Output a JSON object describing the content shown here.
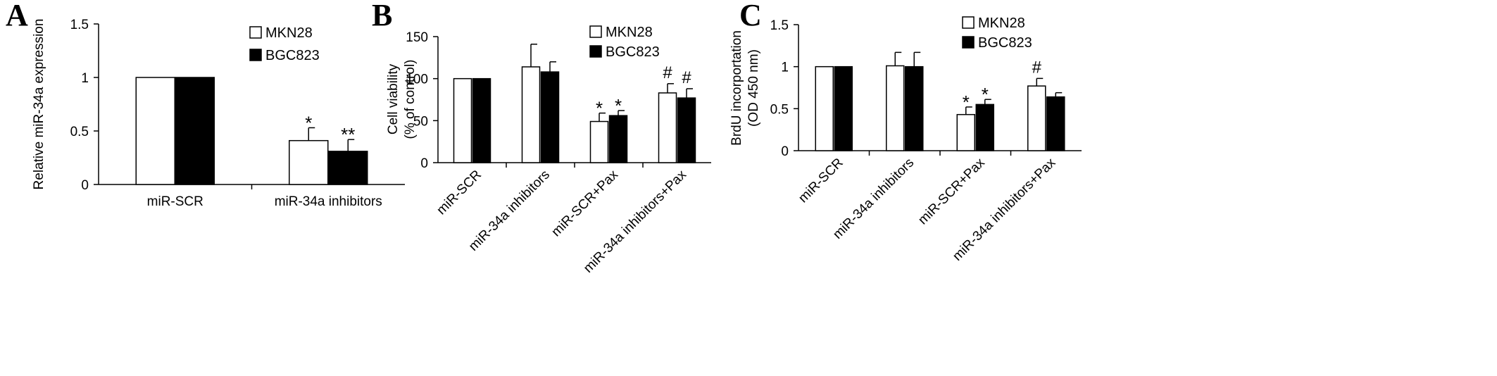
{
  "chart_data": [
    {
      "type": "bar",
      "panel": "A",
      "ylabel": "Relative miR-34a expression",
      "ylim": [
        0,
        1.5
      ],
      "yticks": [
        "0",
        "0.5",
        "1",
        "1.5"
      ],
      "categories": [
        "miR-SCR",
        "miR-34a inhibitors"
      ],
      "series": [
        {
          "name": "MKN28",
          "values": [
            1.0,
            0.41
          ],
          "errors": [
            0.0,
            0.12
          ],
          "marks": [
            "",
            "*"
          ]
        },
        {
          "name": "BGC823",
          "values": [
            1.0,
            0.31
          ],
          "errors": [
            0.0,
            0.11
          ],
          "marks": [
            "",
            "**"
          ]
        }
      ],
      "grid": false,
      "legend": "top-right"
    },
    {
      "type": "bar",
      "panel": "B",
      "ylabel": [
        "Cell viability",
        "(% of control)"
      ],
      "ylim": [
        0,
        150
      ],
      "yticks": [
        "0",
        "50",
        "100",
        "150"
      ],
      "categories": [
        "miR-SCR",
        "miR-34a inhibitors",
        "miR-SCR+Pax",
        "miR-34a inhibitors+Pax"
      ],
      "series": [
        {
          "name": "MKN28",
          "values": [
            100,
            114,
            49,
            83
          ],
          "errors": [
            0,
            27,
            10,
            11
          ],
          "marks": [
            "",
            "",
            "*",
            "#"
          ]
        },
        {
          "name": "BGC823",
          "values": [
            100,
            108,
            56,
            77
          ],
          "errors": [
            0,
            12,
            6,
            11
          ],
          "marks": [
            "",
            "",
            "*",
            "#"
          ]
        }
      ],
      "grid": false,
      "legend": "top-right"
    },
    {
      "type": "bar",
      "panel": "C",
      "ylabel": [
        "BrdU incorportation",
        "(OD 450 nm)"
      ],
      "ylim": [
        0,
        1.5
      ],
      "yticks": [
        "0",
        "0.5",
        "1",
        "1.5"
      ],
      "categories": [
        "miR-SCR",
        "miR-34a inhibitors",
        "miR-SCR+Pax",
        "miR-34a inhibitors+Pax"
      ],
      "series": [
        {
          "name": "MKN28",
          "values": [
            1.0,
            1.01,
            0.43,
            0.77
          ],
          "errors": [
            0.0,
            0.16,
            0.09,
            0.09
          ],
          "marks": [
            "",
            "",
            "*",
            "#"
          ]
        },
        {
          "name": "BGC823",
          "values": [
            1.0,
            1.0,
            0.55,
            0.64
          ],
          "errors": [
            0.0,
            0.17,
            0.06,
            0.05
          ],
          "marks": [
            "",
            "",
            "*",
            ""
          ]
        }
      ],
      "grid": false,
      "legend": "top-right"
    }
  ],
  "colors": {
    "MKN28": "#ffffff",
    "BGC823": "#000000",
    "axis": "#000000"
  }
}
